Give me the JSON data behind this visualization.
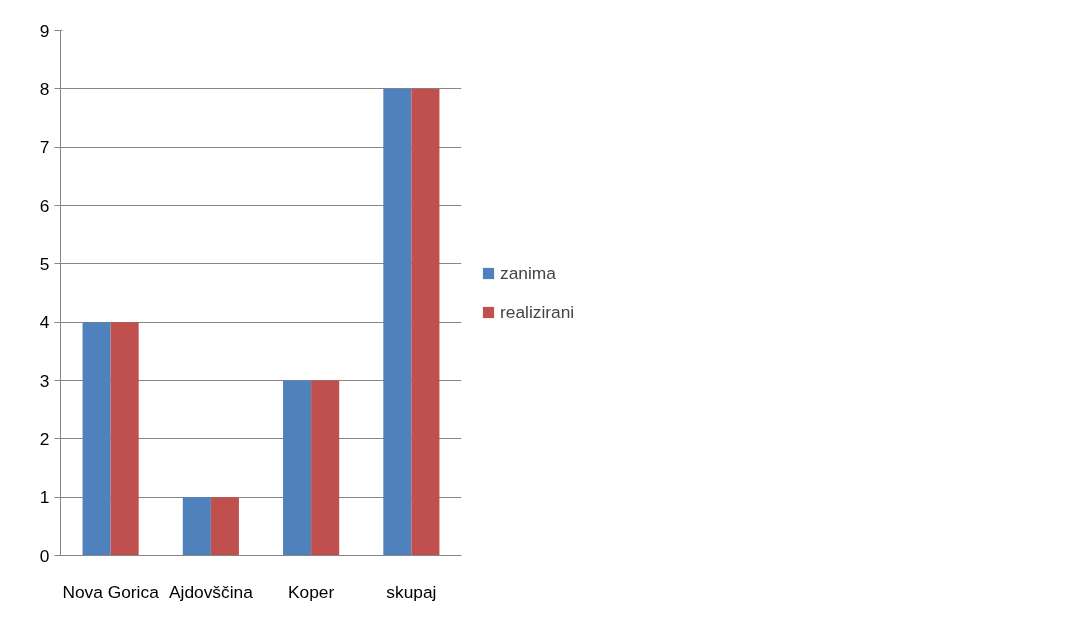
{
  "chart_data": {
    "type": "bar",
    "categories": [
      "Nova Gorica",
      "Ajdovščina",
      "Koper",
      "skupaj"
    ],
    "series": [
      {
        "name": "zanima",
        "color": "#4f81bd",
        "values": [
          4,
          1,
          3,
          8
        ]
      },
      {
        "name": "realizirani",
        "color": "#c0504d",
        "values": [
          4,
          1,
          3,
          8
        ]
      }
    ],
    "ylim": [
      0,
      9
    ],
    "yticks": [
      0,
      1,
      2,
      3,
      4,
      5,
      6,
      7,
      8,
      9
    ],
    "grid": "y",
    "legend": "right"
  }
}
